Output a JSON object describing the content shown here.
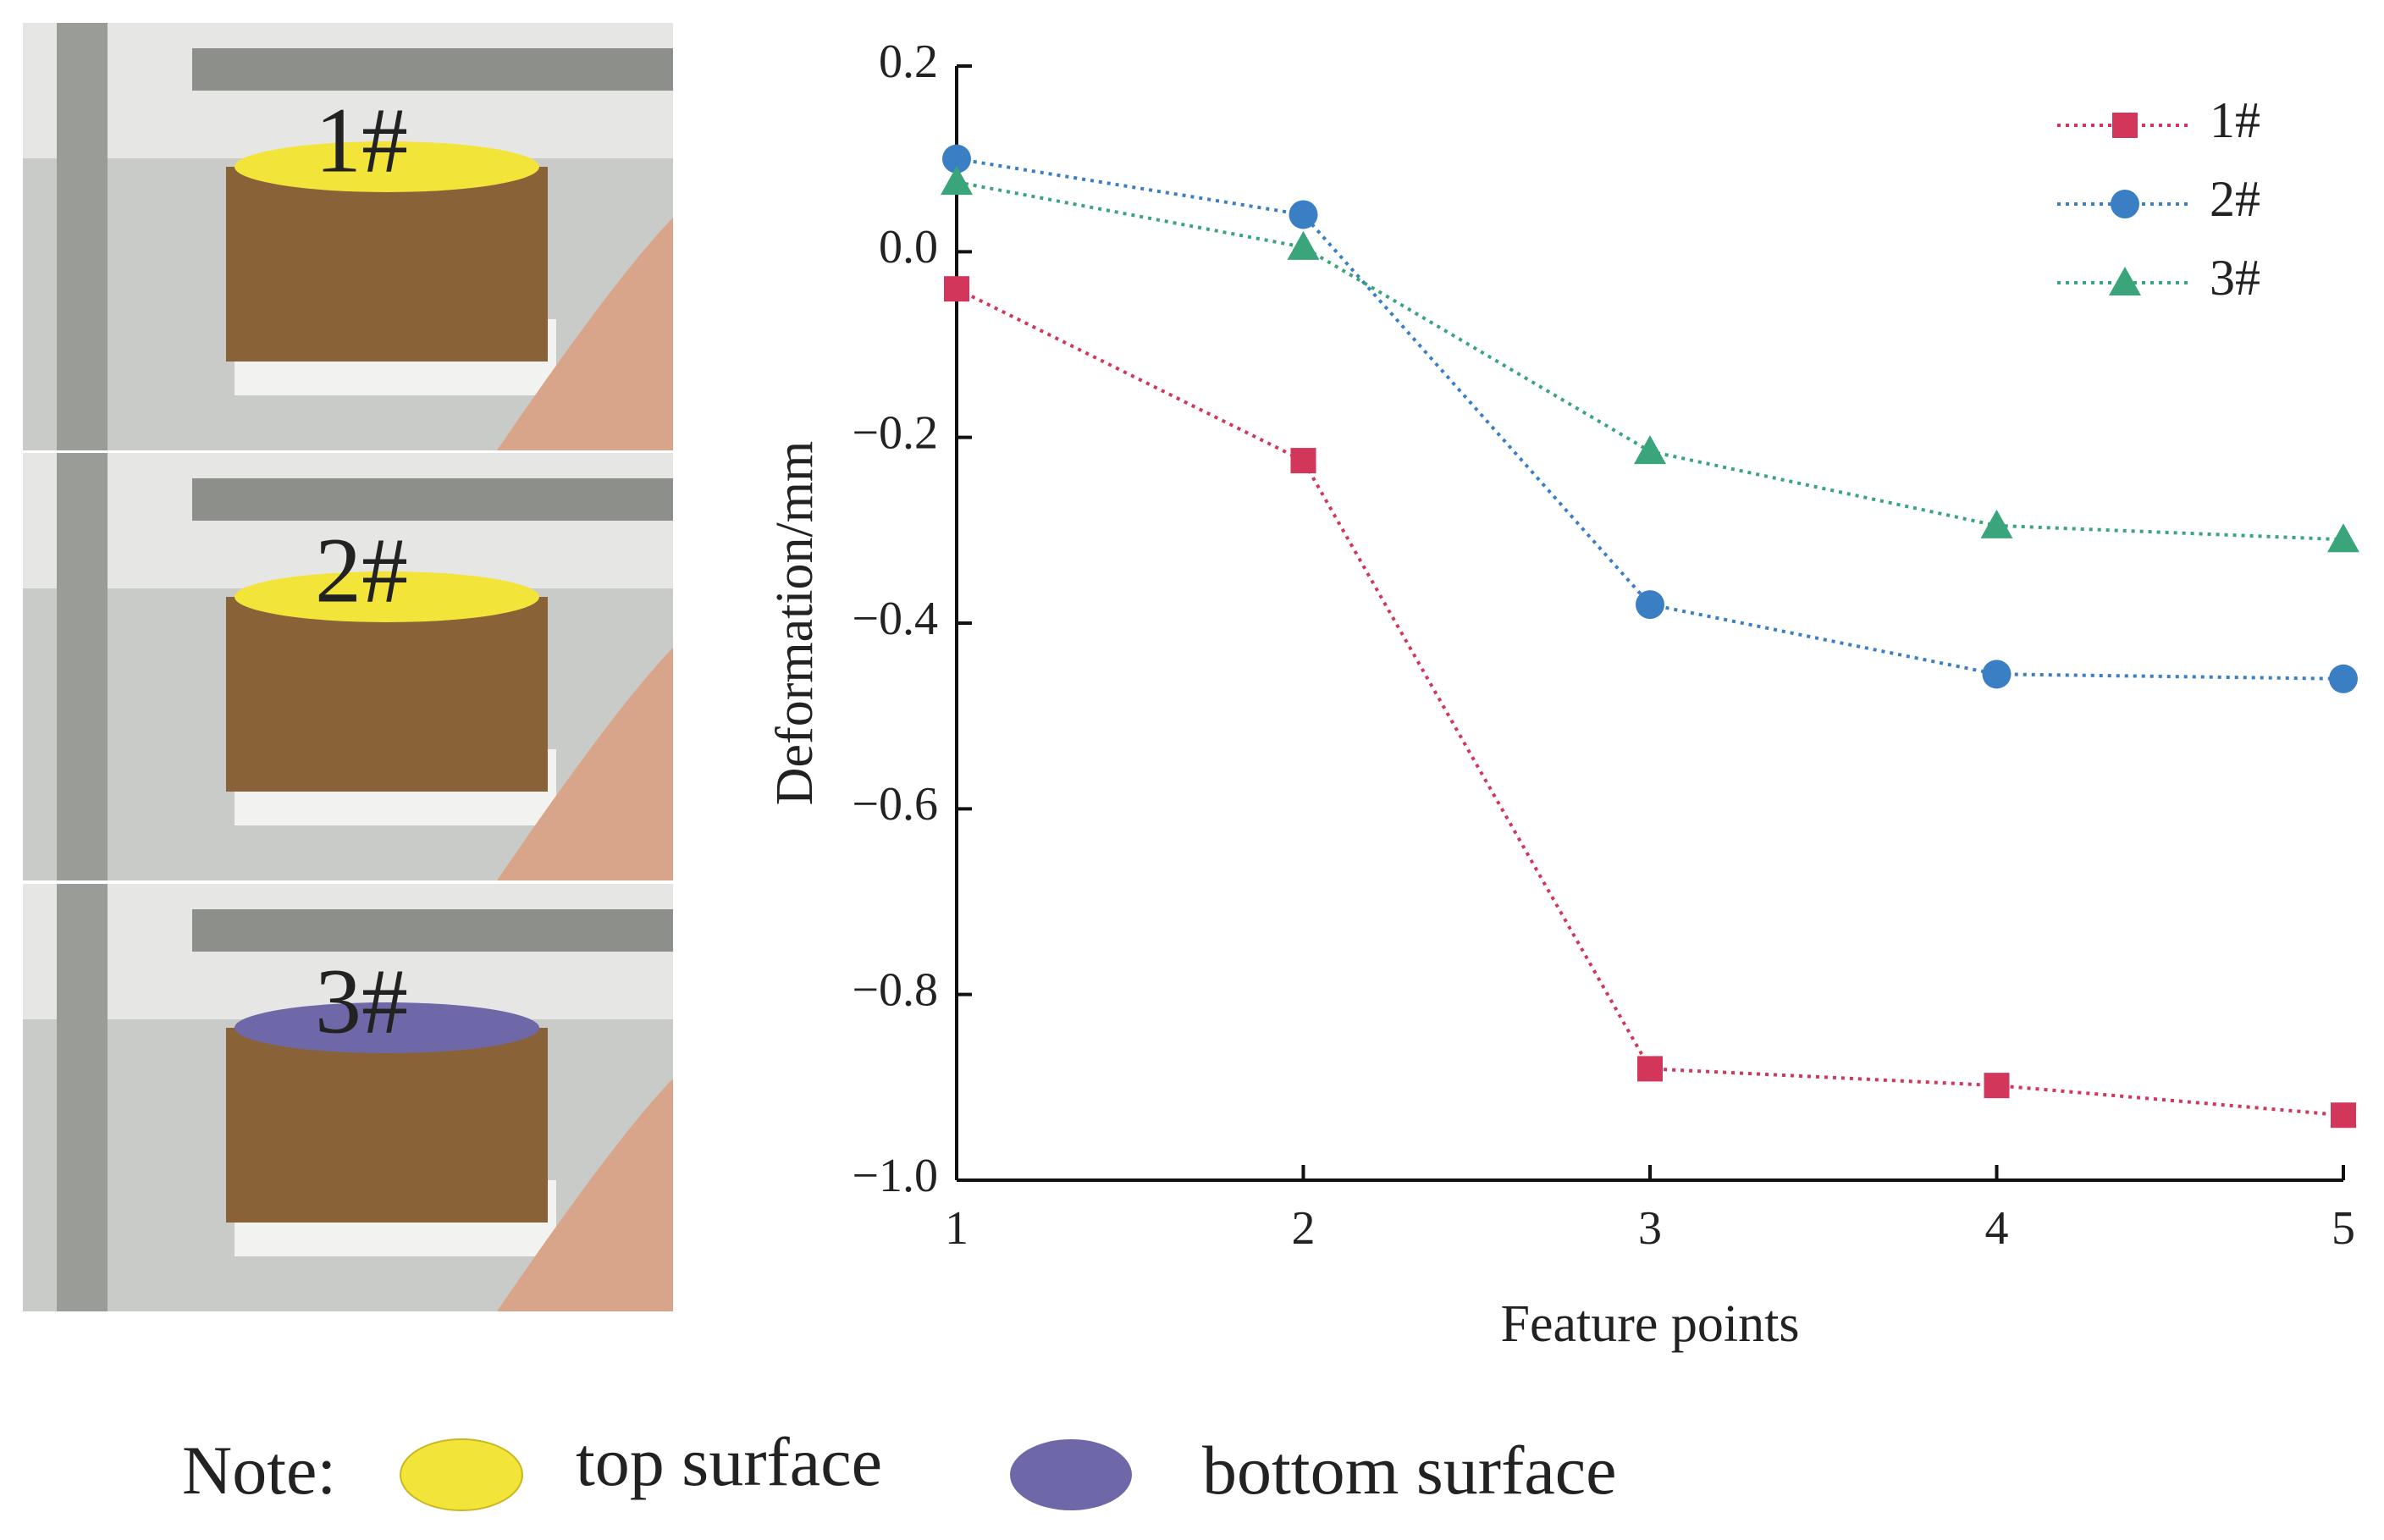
{
  "photos": [
    {
      "label": "1#"
    },
    {
      "label": "2#"
    },
    {
      "label": "3#"
    }
  ],
  "note": {
    "title": "Note:",
    "top": "top surface",
    "bottom": "bottom surface"
  },
  "chart_data": {
    "type": "line",
    "x": [
      1,
      2,
      3,
      4,
      5
    ],
    "xlim": [
      1,
      5
    ],
    "xticks": [
      1,
      2,
      3,
      4,
      5
    ],
    "ylim": [
      -1,
      0.2
    ],
    "yticks": [
      0.2,
      {
        "value": 0,
        "label": "0.0"
      },
      {
        "value": -0.2,
        "label": "−0.2"
      },
      {
        "value": -0.4,
        "label": "−0.4"
      },
      {
        "value": -0.6,
        "label": "−0.6"
      },
      {
        "value": -0.8,
        "label": "−0.8"
      },
      {
        "value": -1,
        "label": "−1.0"
      }
    ],
    "x_label": "Feature points",
    "y_label": "Deformation/mm",
    "legend": "upper right",
    "series": [
      {
        "name": "1#",
        "color": "#d2365a",
        "marker": "square",
        "values": [
          -0.04,
          -0.225,
          -0.88,
          -0.898,
          -0.93
        ]
      },
      {
        "name": "2#",
        "color": "#3a7fc4",
        "marker": "circle",
        "values": [
          0.1,
          0.04,
          -0.38,
          -0.455,
          -0.46
        ]
      },
      {
        "name": "3#",
        "color": "#3aa57a",
        "marker": "triangle",
        "values": [
          0.075,
          0.005,
          -0.215,
          -0.295,
          -0.31
        ]
      }
    ]
  }
}
